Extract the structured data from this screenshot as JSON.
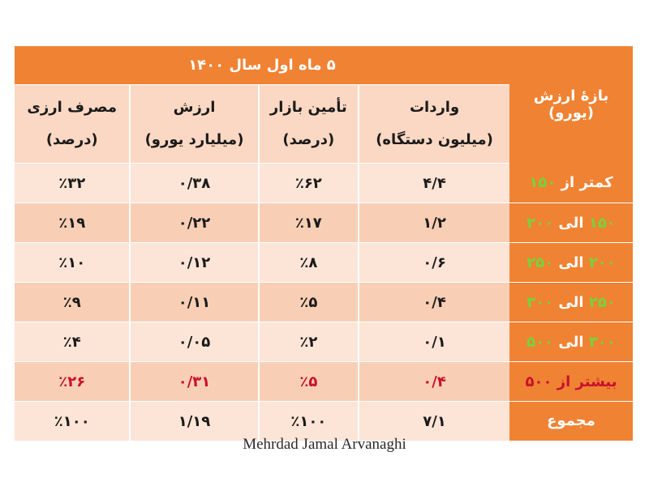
{
  "banner": "۵ ماه اول سال ۱۴۰۰",
  "row_header_title": "بازهٔ ارزش (یورو)",
  "columns": [
    {
      "line1": "واردات",
      "line2": "(میلیون دستگاه)"
    },
    {
      "line1": "تأمین بازار",
      "line2": "(درصد)"
    },
    {
      "line1": "ارزش",
      "line2": "(میلیارد یورو)"
    },
    {
      "line1": "مصرف ارزی",
      "line2": "(درصد)"
    }
  ],
  "rows": [
    {
      "word": "کمتر از",
      "num": "۱۵۰",
      "values": [
        "۴/۴",
        "٪۶۲",
        "۰/۳۸",
        "٪۳۲"
      ]
    },
    {
      "num1": "۱۵۰",
      "word": "الی",
      "num2": "۲۰۰",
      "values": [
        "۱/۲",
        "٪۱۷",
        "۰/۲۲",
        "٪۱۹"
      ]
    },
    {
      "num1": "۲۰۰",
      "word": "الی",
      "num2": "۲۵۰",
      "values": [
        "۰/۶",
        "٪۸",
        "۰/۱۲",
        "٪۱۰"
      ]
    },
    {
      "num1": "۲۵۰",
      "word": "الی",
      "num2": "۳۰۰",
      "values": [
        "۰/۴",
        "٪۵",
        "۰/۱۱",
        "٪۹"
      ]
    },
    {
      "num1": "۳۰۰",
      "word": "الی",
      "num2": "۵۰۰",
      "values": [
        "۰/۱",
        "٪۲",
        "۰/۰۵",
        "٪۴"
      ]
    },
    {
      "label": "بیشتر از ۵۰۰",
      "values": [
        "۰/۴",
        "٪۵",
        "۰/۳۱",
        "٪۲۶"
      ]
    },
    {
      "label": "مجموع",
      "values": [
        "۷/۱",
        "٪۱۰۰",
        "۱/۱۹",
        "٪۱۰۰"
      ]
    }
  ],
  "credit": "Mehrdad Jamal Arvanaghi",
  "colors": {
    "orange": "#f08233",
    "green_text": "#74d43c",
    "red_text": "#c8102e"
  }
}
